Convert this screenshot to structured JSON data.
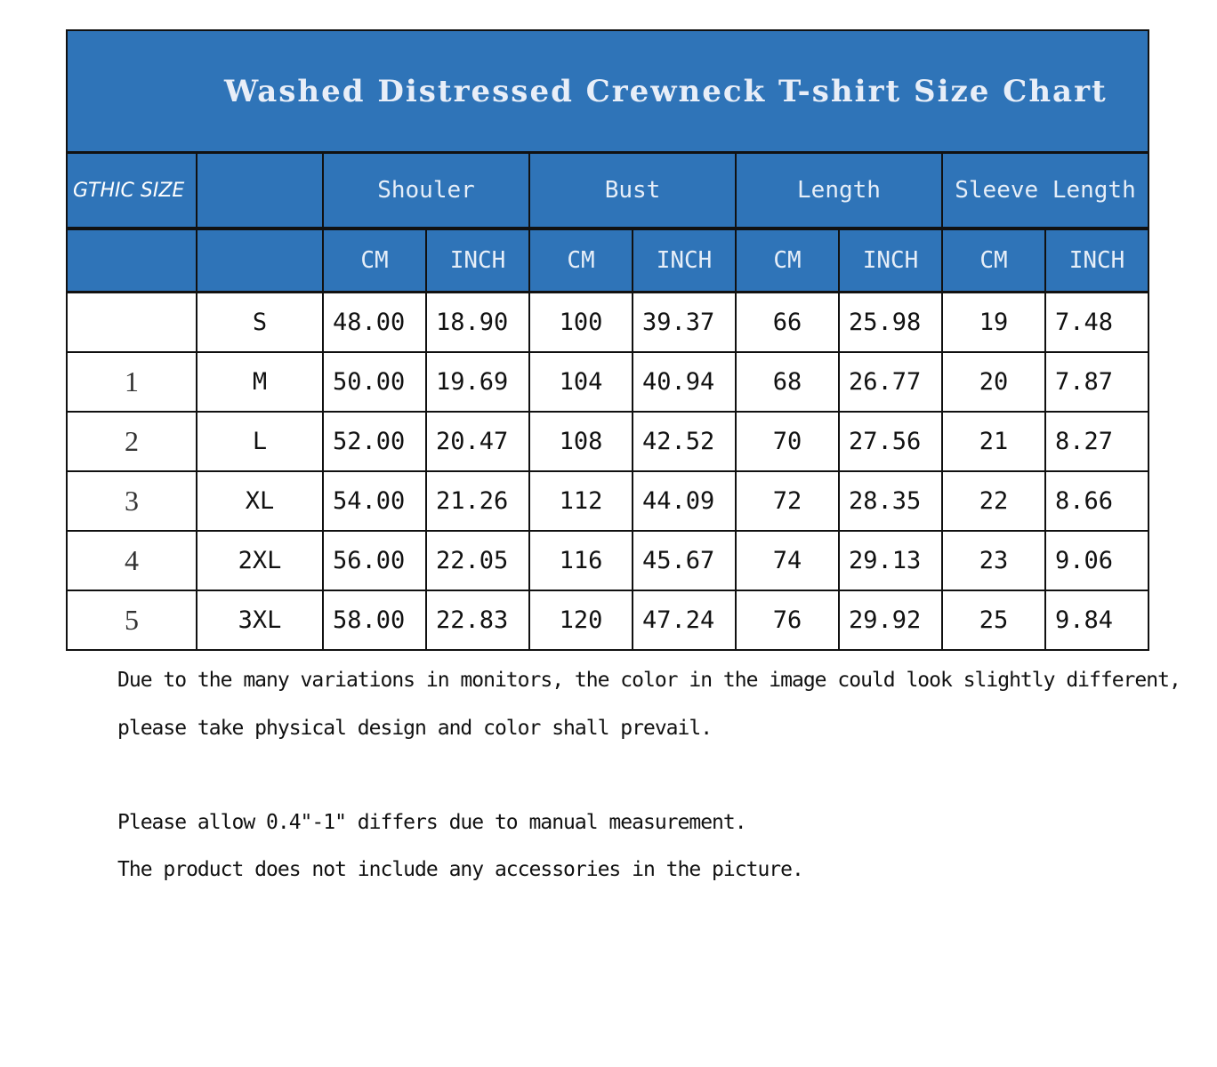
{
  "title": "Washed Distressed Crewneck T-shirt Size Chart",
  "header": {
    "size_label": "GTHIC SIZE",
    "groups": [
      "Shouler",
      "Bust",
      "Length",
      "Sleeve Length"
    ],
    "units": [
      "CM",
      "INCH",
      "CM",
      "INCH",
      "CM",
      "INCH",
      "CM",
      "INCH"
    ]
  },
  "rows": [
    {
      "index": "",
      "size": "S",
      "values": [
        "48.00",
        "18.90",
        "100",
        "39.37",
        "66",
        "25.98",
        "19",
        "7.48"
      ]
    },
    {
      "index": "1",
      "size": "M",
      "values": [
        "50.00",
        "19.69",
        "104",
        "40.94",
        "68",
        "26.77",
        "20",
        "7.87"
      ]
    },
    {
      "index": "2",
      "size": "L",
      "values": [
        "52.00",
        "20.47",
        "108",
        "42.52",
        "70",
        "27.56",
        "21",
        "8.27"
      ]
    },
    {
      "index": "3",
      "size": "XL",
      "values": [
        "54.00",
        "21.26",
        "112",
        "44.09",
        "72",
        "28.35",
        "22",
        "8.66"
      ]
    },
    {
      "index": "4",
      "size": "2XL",
      "values": [
        "56.00",
        "22.05",
        "116",
        "45.67",
        "74",
        "29.13",
        "23",
        "9.06"
      ]
    },
    {
      "index": "5",
      "size": "3XL",
      "values": [
        "58.00",
        "22.83",
        "120",
        "47.24",
        "76",
        "29.92",
        "25",
        "9.84"
      ]
    }
  ],
  "notes": [
    "Due to the many variations in monitors, the color in the image could look slightly different,",
    " please take physical design and color shall prevail.",
    "Please allow 0.4\"-1\" differs due to manual measurement.",
    "The product does not include any accessories in the picture."
  ],
  "colors": {
    "header_blue": "#2f74b8",
    "border": "#111111"
  }
}
